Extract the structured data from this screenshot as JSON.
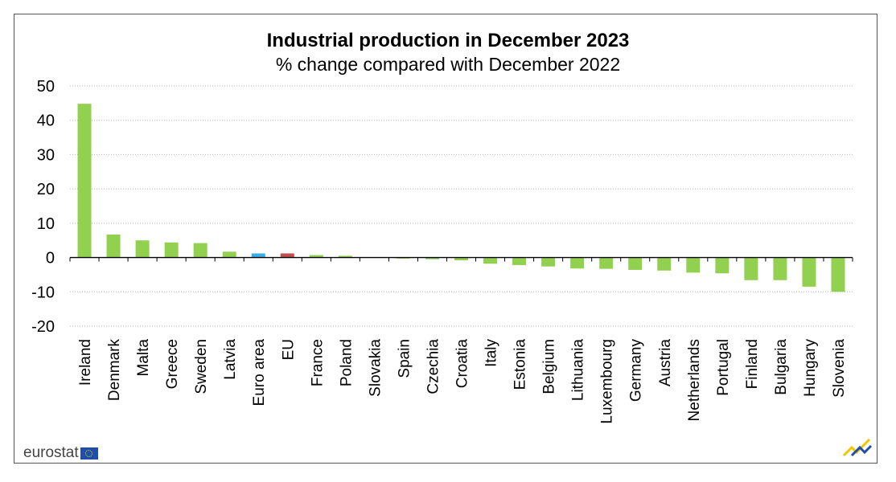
{
  "chart_data": {
    "type": "bar",
    "title": "Industrial production in December 2023",
    "subtitle": "% change compared with December 2022",
    "categories": [
      "Ireland",
      "Denmark",
      "Malta",
      "Greece",
      "Sweden",
      "Latvia",
      "Euro area",
      "EU",
      "France",
      "Poland",
      "Slovakia",
      "Spain",
      "Czechia",
      "Croatia",
      "Italy",
      "Estonia",
      "Belgium",
      "Lithuania",
      "Luxembourg",
      "Germany",
      "Austria",
      "Netherlands",
      "Portugal",
      "Finland",
      "Bulgaria",
      "Hungary",
      "Slovenia"
    ],
    "values": [
      44.8,
      6.7,
      5.0,
      4.4,
      4.2,
      1.7,
      1.2,
      1.2,
      0.7,
      0.5,
      0.0,
      -0.3,
      -0.5,
      -0.8,
      -1.8,
      -2.2,
      -2.6,
      -3.2,
      -3.3,
      -3.6,
      -3.8,
      -4.4,
      -4.6,
      -6.6,
      -6.6,
      -8.5,
      -10.0
    ],
    "colors": [
      "#92d050",
      "#92d050",
      "#92d050",
      "#92d050",
      "#92d050",
      "#92d050",
      "#3aaee8",
      "#c0504d",
      "#92d050",
      "#92d050",
      "#92d050",
      "#92d050",
      "#92d050",
      "#92d050",
      "#92d050",
      "#92d050",
      "#92d050",
      "#92d050",
      "#92d050",
      "#92d050",
      "#92d050",
      "#92d050",
      "#92d050",
      "#92d050",
      "#92d050",
      "#92d050",
      "#92d050"
    ],
    "yticks": [
      50,
      40,
      30,
      20,
      10,
      0,
      -10,
      -20
    ],
    "yticks_labels": [
      "50",
      "40",
      "30",
      "20",
      "10",
      "0",
      "-10",
      "-20"
    ],
    "ylim": [
      -20,
      50
    ],
    "grid": true,
    "legend": "none"
  },
  "branding": {
    "logo_text": "eurostat",
    "logo_icon": "eu-flag-icon",
    "corner_icon": "eurostat-chart-mark-icon"
  }
}
